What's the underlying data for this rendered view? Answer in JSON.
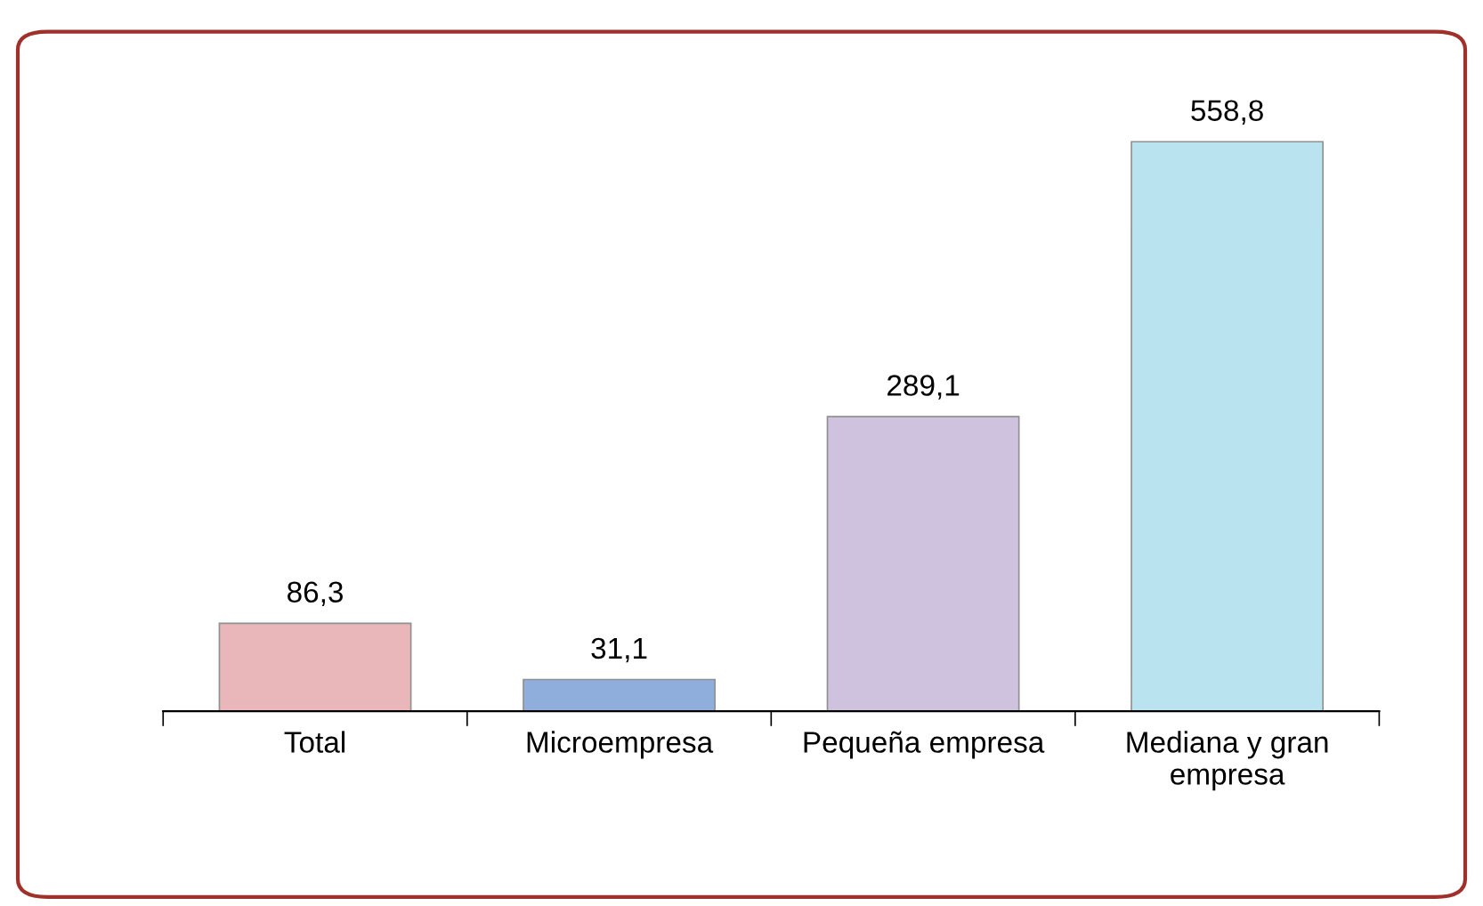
{
  "chart_data": {
    "type": "bar",
    "categories": [
      "Total",
      "Microempresa",
      "Pequeña empresa",
      "Mediana y gran\nempresa"
    ],
    "values": [
      86.3,
      31.1,
      289.1,
      558.8
    ],
    "value_labels": [
      "86,3",
      "31,1",
      "289,1",
      "558,8"
    ],
    "colors": [
      "#e9b7b9",
      "#8faedc",
      "#cfc2de",
      "#b9e3ee"
    ],
    "grid": false,
    "legend": false
  }
}
